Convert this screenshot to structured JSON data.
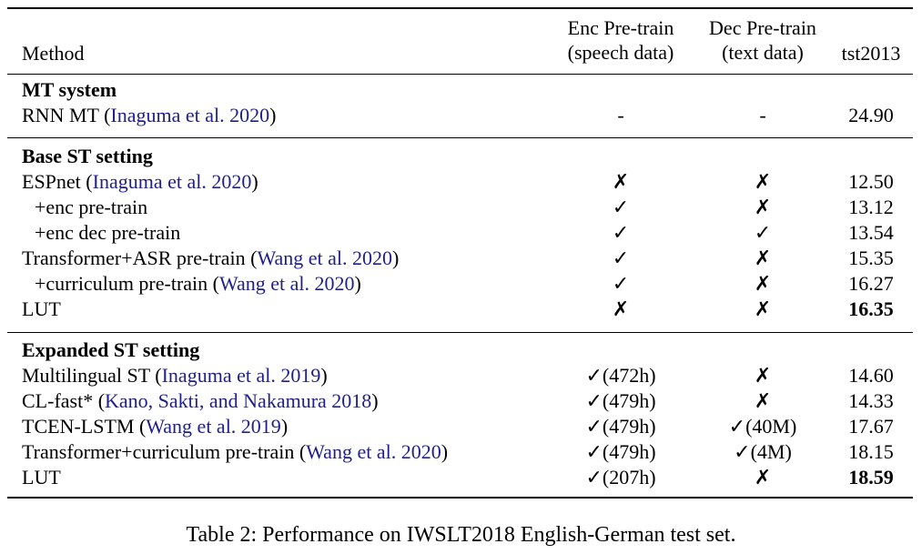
{
  "header": {
    "method": "Method",
    "enc_line1": "Enc Pre-train",
    "enc_line2": "(speech data)",
    "dec_line1": "Dec Pre-train",
    "dec_line2": "(text data)",
    "tst": "tst2013"
  },
  "sections": [
    {
      "title": "MT system",
      "rows": [
        {
          "method": "RNN MT",
          "cite": "Inaguma et al. 2020",
          "enc": "-",
          "dec": "-",
          "score": "24.90"
        }
      ]
    },
    {
      "title": "Base ST setting",
      "rows": [
        {
          "method": "ESPnet",
          "cite": "Inaguma et al. 2020",
          "enc": "✗",
          "dec": "✗",
          "score": "12.50"
        },
        {
          "method": "+enc pre-train",
          "cite": "",
          "enc": "✓",
          "dec": "✗",
          "score": "13.12"
        },
        {
          "method": "+enc dec pre-train",
          "cite": "",
          "enc": "✓",
          "dec": "✓",
          "score": "13.54"
        },
        {
          "method": "Transformer+ASR pre-train",
          "cite": "Wang et al. 2020",
          "enc": "✓",
          "dec": "✗",
          "score": "15.35"
        },
        {
          "method": "+curriculum pre-train",
          "cite": "Wang et al. 2020",
          "enc": "✓",
          "dec": "✗",
          "score": "16.27"
        },
        {
          "method": "LUT",
          "cite": "",
          "enc": "✗",
          "dec": "✗",
          "score": "16.35"
        }
      ]
    },
    {
      "title": "Expanded ST setting",
      "rows": [
        {
          "method": "Multilingual ST",
          "cite": "Inaguma et al. 2019",
          "enc": "✓(472h)",
          "dec": "✗",
          "score": "14.60"
        },
        {
          "method": "CL-fast*",
          "cite": "Kano, Sakti, and Nakamura 2018",
          "enc": "✓(479h)",
          "dec": "✗",
          "score": "14.33"
        },
        {
          "method": "TCEN-LSTM",
          "cite": "Wang et al. 2019",
          "enc": "✓(479h)",
          "dec": "✓(40M)",
          "score": "17.67"
        },
        {
          "method": "Transformer+curriculum pre-train",
          "cite": "Wang et al. 2020",
          "enc": "✓(479h)",
          "dec": "✓(4M)",
          "score": "18.15"
        },
        {
          "method": "LUT",
          "cite": "",
          "enc": "✓(207h)",
          "dec": "✗",
          "score": "18.59"
        }
      ]
    }
  ],
  "caption": "Table 2: Performance on IWSLT2018 English-German test set."
}
